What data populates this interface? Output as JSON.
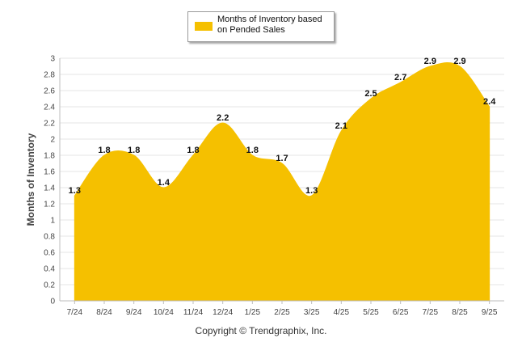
{
  "legend": {
    "label": "Months of Inventory based on Pended Sales"
  },
  "copyright": "Copyright © Trendgraphix, Inc.",
  "colors": {
    "fill": "#f5c000",
    "grid": "#e6e6e6",
    "axis": "#bdbdbd"
  },
  "chart_data": {
    "type": "area",
    "title": "",
    "xlabel": "",
    "ylabel": "Months of Inventory",
    "categories": [
      "7/24",
      "8/24",
      "9/24",
      "10/24",
      "11/24",
      "12/24",
      "1/25",
      "2/25",
      "3/25",
      "4/25",
      "5/25",
      "6/25",
      "7/25",
      "8/25",
      "9/25"
    ],
    "series": [
      {
        "name": "Months of Inventory based on Pended Sales",
        "values": [
          1.3,
          1.8,
          1.8,
          1.4,
          1.8,
          2.2,
          1.8,
          1.7,
          1.3,
          2.1,
          2.5,
          2.7,
          2.9,
          2.9,
          2.4
        ]
      }
    ],
    "yticks": [
      "0",
      "0.2",
      "0.4",
      "0.6",
      "0.8",
      "1",
      "1.2",
      "1.4",
      "1.6",
      "1.8",
      "2",
      "2.2",
      "2.4",
      "2.6",
      "2.8",
      "3"
    ],
    "ylim": [
      0,
      3
    ],
    "grid": true,
    "legend_position": "top-center",
    "smoothed": true
  }
}
